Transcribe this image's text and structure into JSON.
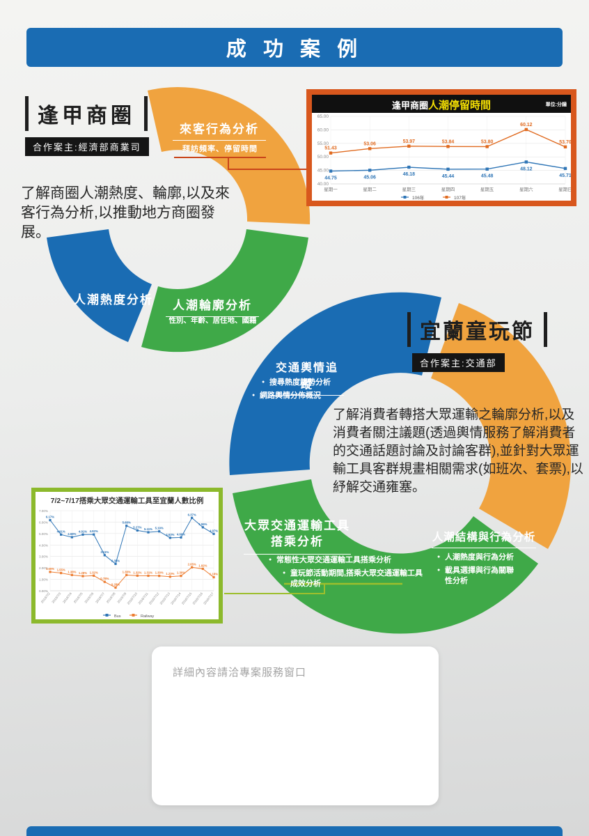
{
  "header": {
    "title": "成 功 案 例"
  },
  "case1": {
    "title": "逢甲商圈",
    "client": "合作案主:經濟部商業司",
    "description": "了解商圈人潮熱度、輪廓,以及來客行為分析,以推動地方商圈發展。",
    "segments": {
      "orange": {
        "label": "來客行為分析",
        "sub": "拜訪頻率、停留時間"
      },
      "blue": {
        "label": "人潮熱度分析"
      },
      "green": {
        "label": "人潮輪廓分析",
        "sub": "性別、年齡、居住地、國籍"
      }
    }
  },
  "case2": {
    "title": "宜蘭童玩節",
    "client": "合作案主:交通部",
    "description": "了解消費者轉搭大眾運輸之輪廓分析,以及消費者關注議題(透過輿情服務了解消費者的交通話題討論及討論客群),並針對大眾運輸工具客群規畫相關需求(如班次、套票),以紓解交通雍塞。",
    "segments": {
      "blue": {
        "label": "交通輿情追蹤",
        "bullets": [
          "搜尋熱度趨勢分析",
          "網路輿情分佈概況"
        ]
      },
      "green": {
        "label": "大眾交通運輸工具搭乘分析",
        "bullets": [
          "常態性大眾交通運輸工具搭乘分析",
          "童玩節活動期間,搭乘大眾交通運輸工具成效分析"
        ]
      },
      "orange": {
        "label": "人潮結構與行為分析",
        "bullets": [
          "人潮熱度與行為分析",
          "載具選擇與行為關聯性分析"
        ]
      }
    }
  },
  "chart_data": [
    {
      "type": "line",
      "title": "逢甲商圈人潮停留時間",
      "title_prefix": "逢甲商圈",
      "title_highlight": "人潮停留時間",
      "unit_label": "單位:分鐘",
      "categories": [
        "星期一",
        "星期二",
        "星期三",
        "星期四",
        "星期五",
        "星期六",
        "星期日"
      ],
      "series": [
        {
          "name": "106年",
          "color": "#2e75b6",
          "values": [
            44.75,
            45.06,
            46.18,
            45.44,
            45.48,
            48.12,
            45.71
          ]
        },
        {
          "name": "107年",
          "color": "#e06a1f",
          "values": [
            51.43,
            53.06,
            53.97,
            53.84,
            53.8,
            60.12,
            53.7
          ]
        }
      ],
      "ylim": [
        40,
        65
      ],
      "yticks": [
        "65.00",
        "60.00",
        "55.00",
        "50.00",
        "45.00",
        "40.00"
      ],
      "grid": true,
      "legend_position": "bottom"
    },
    {
      "type": "line",
      "title": "7/2~7/17搭乘大眾交通運輸工具至宜蘭人數比例",
      "categories": [
        "2016/7/2",
        "2016/7/3",
        "2016/7/4",
        "2016/7/5",
        "2016/7/6",
        "2016/7/7",
        "2016/7/8",
        "2016/7/9",
        "2016/7/10",
        "2016/7/11",
        "2016/7/12",
        "2016/7/13",
        "2016/7/14",
        "2016/7/15",
        "2016/7/16",
        "2016/7/17"
      ],
      "series": [
        {
          "name": "Bus",
          "color": "#2e75b6",
          "values": [
            6.17,
            4.91,
            4.68,
            4.91,
            4.92,
            3.11,
            2.35,
            5.68,
            5.27,
            5.11,
            5.19,
            4.63,
            4.66,
            6.37,
            5.55,
            4.97
          ]
        },
        {
          "name": "Railway",
          "color": "#ed7d31",
          "values": [
            1.65,
            1.55,
            1.38,
            1.28,
            1.32,
            0.78,
            0.28,
            1.38,
            1.32,
            1.31,
            1.3,
            1.23,
            1.3,
            2.05,
            1.92,
            1.18
          ]
        }
      ],
      "ylim": [
        0,
        7
      ],
      "yticks": [
        "7.00%",
        "6.00%",
        "5.00%",
        "4.00%",
        "3.00%",
        "2.00%",
        "1.00%",
        "0.00%"
      ],
      "grid": true,
      "legend_position": "bottom"
    }
  ],
  "footer_note": "詳細內容請洽專案服務窗口",
  "colors": {
    "blue": "#1a6cb3",
    "orange": "#f0a33f",
    "green": "#3fa948",
    "chart1_border": "#d8571d",
    "chart2_border": "#8cb92c",
    "highlight_yellow": "#f5e003",
    "black_bar": "#101010",
    "connector_red": "#c9441a",
    "connector_green": "#9dbf2d"
  }
}
